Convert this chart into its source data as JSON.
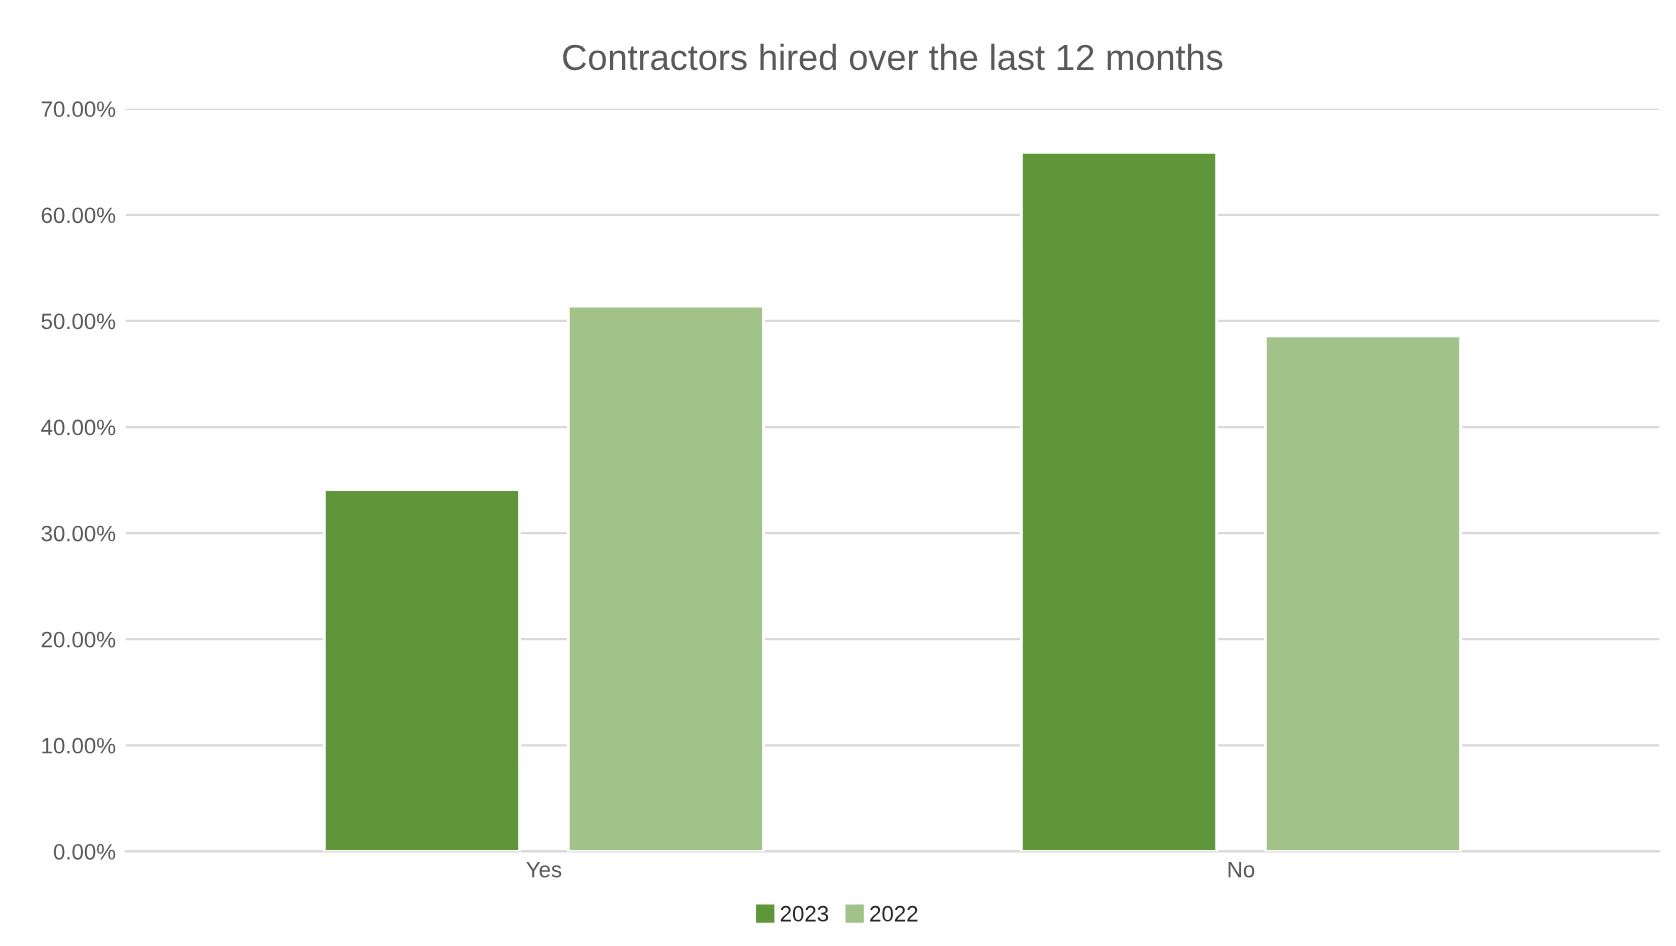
{
  "chart_data": {
    "type": "bar",
    "title": "Contractors hired over the last 12 months",
    "categories": [
      "Yes",
      "No"
    ],
    "series": [
      {
        "name": "2023",
        "color": "#5e9639",
        "values": [
          34.1,
          65.9
        ]
      },
      {
        "name": "2022",
        "color": "#a1c38a",
        "values": [
          51.4,
          48.6
        ]
      }
    ],
    "ylim": [
      0,
      70
    ],
    "yticks": [
      {
        "value": 0,
        "label": "0.00%"
      },
      {
        "value": 10,
        "label": "10.00%"
      },
      {
        "value": 20,
        "label": "20.00%"
      },
      {
        "value": 30,
        "label": "30.00%"
      },
      {
        "value": 40,
        "label": "40.00%"
      },
      {
        "value": 50,
        "label": "50.00%"
      },
      {
        "value": 60,
        "label": "60.00%"
      },
      {
        "value": 70,
        "label": "70.00%"
      }
    ],
    "grid": "y",
    "legend": "bottom"
  }
}
